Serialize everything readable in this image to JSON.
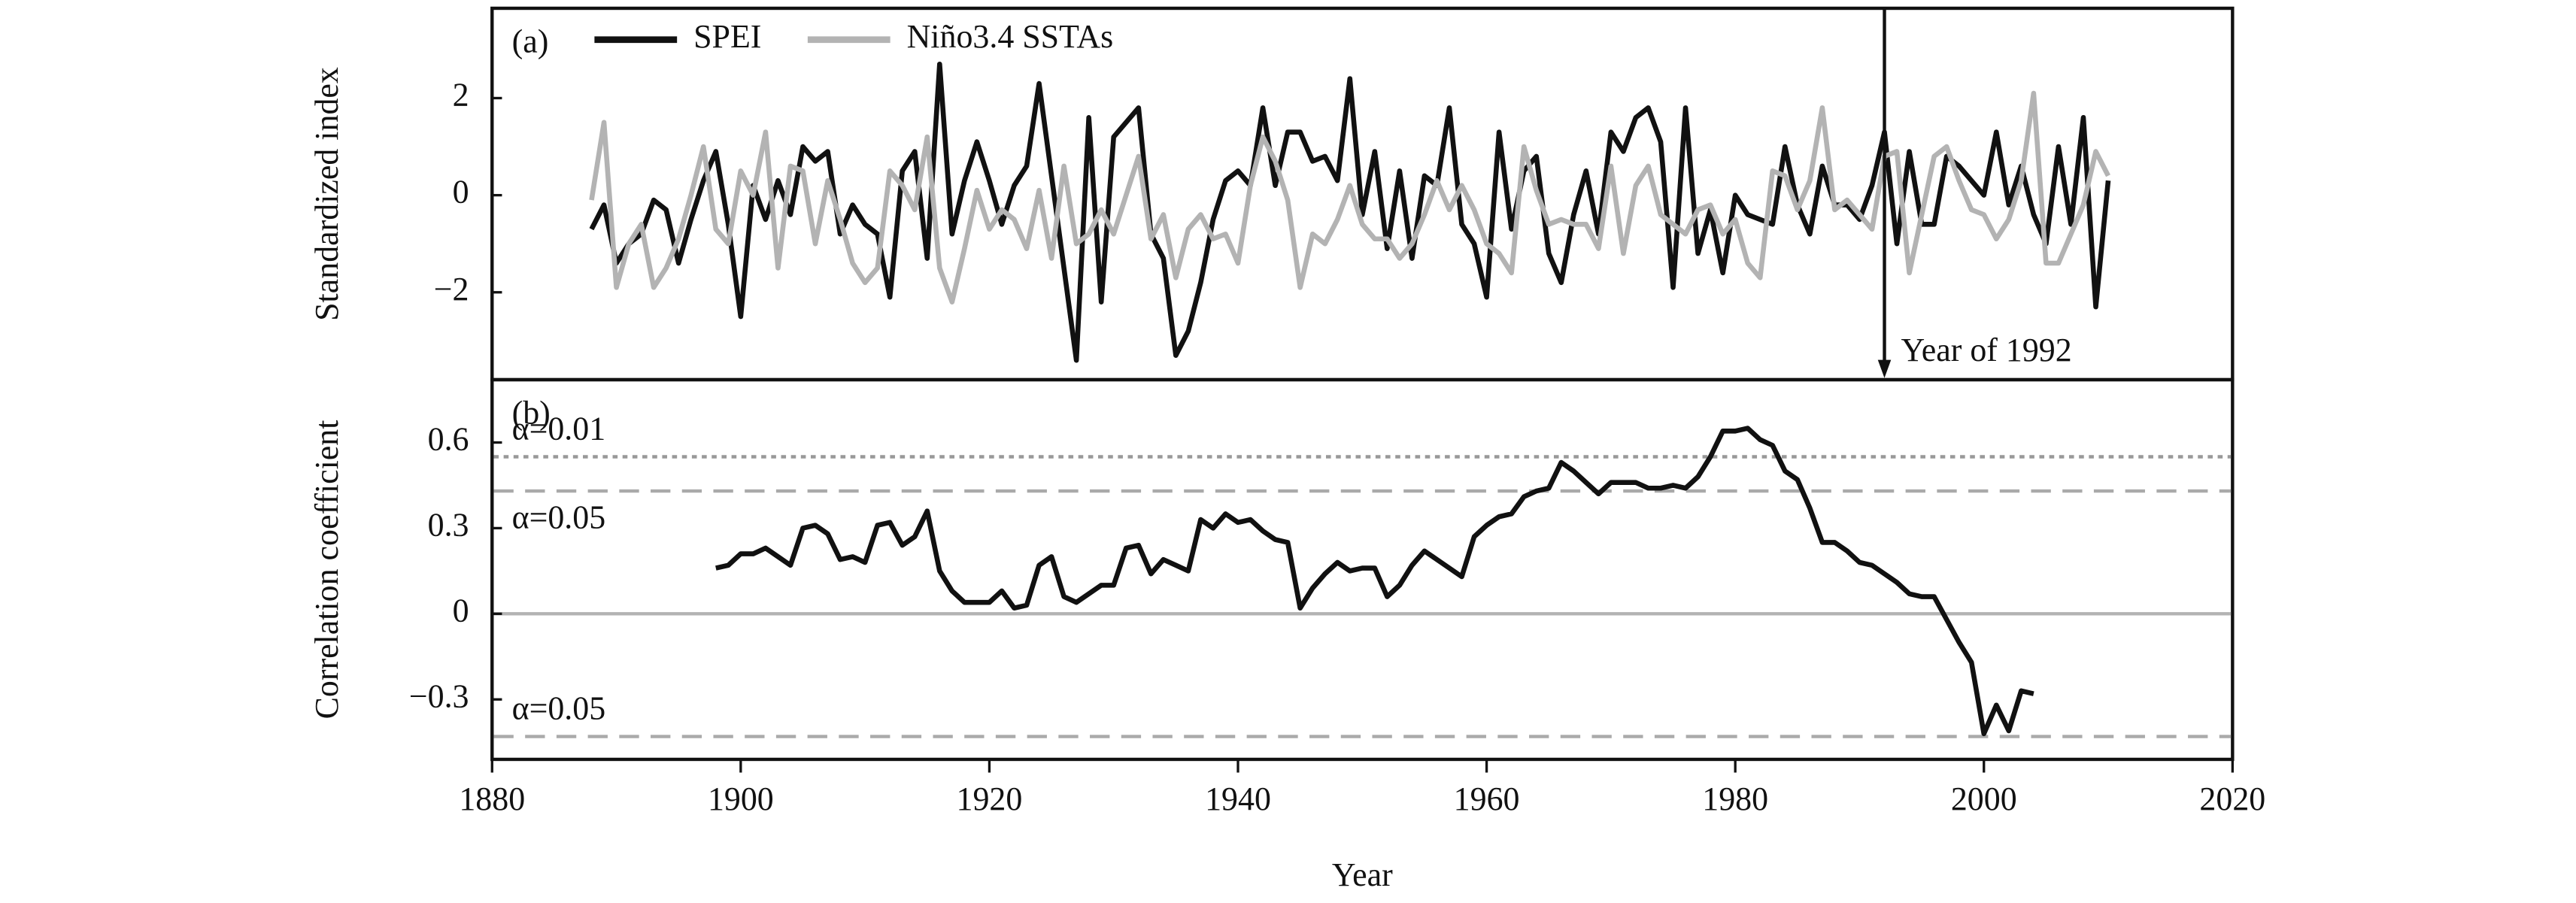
{
  "chart_data": [
    {
      "type": "line",
      "panel_label": "(a)",
      "ylabel": "Standardized index",
      "xlim": [
        1880,
        2020
      ],
      "ylim": [
        -3.8,
        3.85
      ],
      "yticks": [
        {
          "value": -2,
          "label": "−2"
        },
        0,
        2
      ],
      "legend": "upper left",
      "x": [
        1888,
        1889,
        1890,
        1891,
        1892,
        1893,
        1894,
        1895,
        1896,
        1897,
        1898,
        1899,
        1900,
        1901,
        1902,
        1903,
        1904,
        1905,
        1906,
        1907,
        1908,
        1909,
        1910,
        1911,
        1912,
        1913,
        1914,
        1915,
        1916,
        1917,
        1918,
        1919,
        1920,
        1921,
        1922,
        1923,
        1924,
        1925,
        1926,
        1927,
        1928,
        1929,
        1930,
        1931,
        1932,
        1933,
        1934,
        1935,
        1936,
        1937,
        1938,
        1939,
        1940,
        1941,
        1942,
        1943,
        1944,
        1945,
        1946,
        1947,
        1948,
        1949,
        1950,
        1951,
        1952,
        1953,
        1954,
        1955,
        1956,
        1957,
        1958,
        1959,
        1960,
        1961,
        1962,
        1963,
        1964,
        1965,
        1966,
        1967,
        1968,
        1969,
        1970,
        1971,
        1972,
        1973,
        1974,
        1975,
        1976,
        1977,
        1978,
        1979,
        1980,
        1981,
        1982,
        1983,
        1984,
        1985,
        1986,
        1987,
        1988,
        1989,
        1990,
        1991,
        1992,
        1993,
        1994,
        1995,
        1996,
        1997,
        1998,
        1999,
        2000,
        2001,
        2002,
        2003,
        2004,
        2005,
        2006,
        2007,
        2008,
        2009,
        2010
      ],
      "series": [
        {
          "name": "SPEI",
          "color": "#111111",
          "values": [
            -0.7,
            -0.2,
            -1.4,
            -1.0,
            -0.8,
            -0.1,
            -0.3,
            -1.4,
            -0.5,
            0.3,
            0.9,
            -0.6,
            -2.5,
            0.2,
            -0.5,
            0.3,
            -0.4,
            1.0,
            0.7,
            0.9,
            -0.8,
            -0.2,
            -0.6,
            -0.8,
            -2.1,
            0.5,
            0.9,
            -1.3,
            2.7,
            -0.8,
            0.3,
            1.1,
            0.3,
            -0.6,
            0.2,
            0.6,
            2.3,
            0.4,
            -1.5,
            -3.4,
            1.6,
            -2.2,
            1.2,
            1.5,
            1.8,
            -0.8,
            -1.3,
            -3.3,
            -2.8,
            -1.8,
            -0.5,
            0.3,
            0.5,
            0.2,
            1.8,
            0.2,
            1.3,
            1.3,
            0.7,
            0.8,
            0.3,
            2.4,
            -0.4,
            0.9,
            -1.1,
            0.5,
            -1.3,
            0.4,
            0.2,
            1.8,
            -0.6,
            -1.0,
            -2.1,
            1.3,
            -0.7,
            0.5,
            0.8,
            -1.2,
            -1.8,
            -0.4,
            0.5,
            -0.8,
            1.3,
            0.9,
            1.6,
            1.8,
            1.1,
            -1.9,
            1.8,
            -1.2,
            -0.3,
            -1.6,
            0.0,
            -0.4,
            -0.5,
            -0.6,
            1.0,
            -0.2,
            -0.8,
            0.6,
            -0.2,
            -0.2,
            -0.5,
            0.2,
            1.3,
            -1.0,
            0.9,
            -0.6,
            -0.6,
            0.8,
            0.6,
            0.3,
            0.0,
            1.3,
            -0.2,
            0.6,
            -0.4,
            -1.0,
            1.0,
            -0.6,
            1.6,
            -2.3,
            0.3
          ]
        },
        {
          "name": "Niño3.4 SSTAs",
          "color": "#b3b3b3",
          "values": [
            -0.1,
            1.5,
            -1.9,
            -1.0,
            -0.6,
            -1.9,
            -1.5,
            -0.9,
            0.0,
            1.0,
            -0.7,
            -1.0,
            0.5,
            0.0,
            1.3,
            -1.5,
            0.6,
            0.5,
            -1.0,
            0.3,
            -0.5,
            -1.4,
            -1.8,
            -1.5,
            0.5,
            0.2,
            -0.3,
            1.2,
            -1.5,
            -2.2,
            -1.1,
            0.1,
            -0.7,
            -0.3,
            -0.5,
            -1.1,
            0.1,
            -1.3,
            0.6,
            -1.0,
            -0.8,
            -0.3,
            -0.8,
            0.0,
            0.8,
            -0.9,
            -0.4,
            -1.7,
            -0.7,
            -0.4,
            -0.9,
            -0.8,
            -1.4,
            0.2,
            1.2,
            0.7,
            -0.1,
            -1.9,
            -0.8,
            -1.0,
            -0.5,
            0.2,
            -0.6,
            -0.9,
            -0.9,
            -1.3,
            -1.0,
            -0.4,
            0.3,
            -0.3,
            0.2,
            -0.3,
            -1.0,
            -1.2,
            -1.6,
            1.0,
            0.1,
            -0.6,
            -0.5,
            -0.6,
            -0.6,
            -1.1,
            0.6,
            -1.2,
            0.2,
            0.6,
            -0.4,
            -0.6,
            -0.8,
            -0.3,
            -0.2,
            -0.8,
            -0.5,
            -1.4,
            -1.7,
            0.5,
            0.4,
            -0.3,
            0.3,
            1.8,
            -0.3,
            -0.1,
            -0.4,
            -0.7,
            0.8,
            0.9,
            -1.6,
            -0.4,
            0.8,
            1.0,
            0.3,
            -0.3,
            -0.4,
            -0.9,
            -0.5,
            0.3,
            2.1,
            -1.4,
            -1.4,
            -0.8,
            -0.2,
            0.9,
            0.4
          ]
        }
      ],
      "annotations": [
        {
          "text": "Year of 1992",
          "x": 1992
        }
      ]
    },
    {
      "type": "line",
      "panel_label": "(b)",
      "ylabel": "Correlation coefficient",
      "xlabel": "Year",
      "xlim": [
        1880,
        2020
      ],
      "xticks": [
        1880,
        1900,
        1920,
        1940,
        1960,
        1980,
        2000,
        2020
      ],
      "ylim": [
        -0.51,
        0.82
      ],
      "yticks": [
        {
          "value": -0.3,
          "label": "−0.3"
        },
        0,
        0.3,
        0.6
      ],
      "reference_lines": [
        {
          "value": 0.55,
          "label": "α=0.01",
          "style": "dotted",
          "color": "#999999"
        },
        {
          "value": 0.43,
          "label": "α=0.05",
          "style": "dashed",
          "color": "#aaaaaa"
        },
        {
          "value": -0.43,
          "label": "α=0.05",
          "style": "dashed",
          "color": "#aaaaaa"
        },
        {
          "value": 0,
          "style": "solid",
          "color": "#b3b3b3"
        }
      ],
      "x": [
        1898,
        1899,
        1900,
        1901,
        1902,
        1903,
        1904,
        1905,
        1906,
        1907,
        1908,
        1909,
        1910,
        1911,
        1912,
        1913,
        1914,
        1915,
        1916,
        1917,
        1918,
        1919,
        1920,
        1921,
        1922,
        1923,
        1924,
        1925,
        1926,
        1927,
        1928,
        1929,
        1930,
        1931,
        1932,
        1933,
        1934,
        1935,
        1936,
        1937,
        1938,
        1939,
        1940,
        1941,
        1942,
        1943,
        1944,
        1945,
        1946,
        1947,
        1948,
        1949,
        1950,
        1951,
        1952,
        1953,
        1954,
        1955,
        1956,
        1957,
        1958,
        1959,
        1960,
        1961,
        1962,
        1963,
        1964,
        1965,
        1966,
        1967,
        1968,
        1969,
        1970,
        1971,
        1972,
        1973,
        1974,
        1975,
        1976,
        1977,
        1978,
        1979,
        1980,
        1981,
        1982,
        1983,
        1984,
        1985,
        1986,
        1987,
        1988,
        1989,
        1990,
        1991,
        1992,
        1993,
        1994,
        1995,
        1996,
        1997,
        1998,
        1999,
        2000,
        2001,
        2002,
        2003,
        2004
      ],
      "series": [
        {
          "color": "#111111",
          "values": [
            0.16,
            0.17,
            0.21,
            0.21,
            0.23,
            0.2,
            0.17,
            0.3,
            0.31,
            0.28,
            0.19,
            0.2,
            0.18,
            0.31,
            0.32,
            0.24,
            0.27,
            0.36,
            0.15,
            0.08,
            0.04,
            0.04,
            0.04,
            0.08,
            0.02,
            0.03,
            0.17,
            0.2,
            0.06,
            0.04,
            0.07,
            0.1,
            0.1,
            0.23,
            0.24,
            0.14,
            0.19,
            0.17,
            0.15,
            0.33,
            0.3,
            0.35,
            0.32,
            0.33,
            0.29,
            0.26,
            0.25,
            0.02,
            0.09,
            0.14,
            0.18,
            0.15,
            0.16,
            0.16,
            0.06,
            0.1,
            0.17,
            0.22,
            0.19,
            0.16,
            0.13,
            0.27,
            0.31,
            0.34,
            0.35,
            0.41,
            0.43,
            0.44,
            0.53,
            0.5,
            0.46,
            0.42,
            0.46,
            0.46,
            0.46,
            0.44,
            0.44,
            0.45,
            0.44,
            0.48,
            0.55,
            0.64,
            0.64,
            0.65,
            0.61,
            0.59,
            0.5,
            0.47,
            0.37,
            0.25,
            0.25,
            0.22,
            0.18,
            0.17,
            0.14,
            0.11,
            0.07,
            0.06,
            0.06,
            -0.02,
            -0.1,
            -0.17,
            -0.42,
            -0.32,
            -0.41,
            -0.27,
            -0.28
          ]
        }
      ]
    }
  ]
}
